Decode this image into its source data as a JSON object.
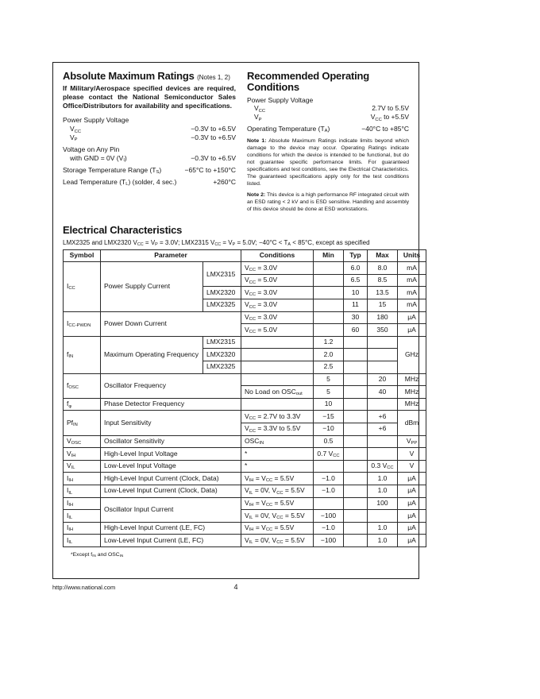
{
  "ink_color": "#141414",
  "border_color": "#1c1c1c",
  "abs_max": {
    "title": "Absolute Maximum Ratings",
    "title_note": "(Notes 1, 2)",
    "warning": "If Military/Aerospace specified devices are required, please contact the National Semiconductor Sales Office/Distributors for availability and specifications.",
    "lines": [
      {
        "label": "Power Supply Voltage",
        "value": ""
      },
      {
        "label": "V~CC~",
        "value": "−0.3V to +6.5V"
      },
      {
        "label": "V~P~",
        "value": "−0.3V to +6.5V"
      },
      {
        "label": "Voltage on Any Pin",
        "value": ""
      },
      {
        "label": "with GND = 0V (V~I~)",
        "value": "−0.3V to +6.5V"
      },
      {
        "label": "Storage Temperature Range (T~S~)",
        "value": "−65°C to +150°C"
      },
      {
        "label": "Lead Temperature (T~L~) (solder, 4 sec.)",
        "value": "+260°C"
      }
    ]
  },
  "rec_op": {
    "title": "Recommended Operating Conditions",
    "lines": [
      {
        "label": "Power Supply Voltage",
        "value": ""
      },
      {
        "label": "V~CC~",
        "value": "2.7V to 5.5V"
      },
      {
        "label": "V~P~",
        "value": "V~CC~ to +5.5V"
      },
      {
        "label": "Operating Temperature (T~A~)",
        "value": "−40°C to +85°C"
      }
    ],
    "notes": [
      {
        "label": "Note 1:",
        "text": "Absolute Maximum Ratings indicate limits beyond which damage to the device may occur. Operating Ratings indicate conditions for which the device is intended to be functional, but do not guarantee specific performance limits. For guaranteed specifications and test conditions, see the Electrical Characteristics. The guaranteed specifications apply only for the test conditions listed."
      },
      {
        "label": "Note 2:",
        "text": "This device is a high performance RF integrated circuit with an ESD rating < 2 kV and is ESD sensitive. Handling and assembly of this device should be done at ESD workstations."
      }
    ]
  },
  "elec": {
    "title": "Electrical Characteristics",
    "subtitle": "LMX2325 and LMX2320 V~CC~ = V~P~ = 3.0V; LMX2315 V~CC~ = V~P~ = 5.0V; −40°C < T~A~ < 85°C, except as specified",
    "headers": [
      "Symbol",
      "Parameter",
      "Conditions",
      "Min",
      "Typ",
      "Max",
      "Units"
    ],
    "rows": [
      [
        "I~CC~",
        "Power Supply Current",
        "LMX2315",
        "V~CC~ = 3.0V",
        "",
        "6.0",
        "8.0",
        "mA"
      ],
      [
        "V~CC~ = 5.0V",
        "",
        "6.5",
        "8.5",
        "mA"
      ],
      [
        "LMX2320",
        "V~CC~ = 3.0V",
        "",
        "10",
        "13.5",
        "mA"
      ],
      [
        "LMX2325",
        "V~CC~ = 3.0V",
        "",
        "11",
        "15",
        "mA"
      ],
      [
        "I~CC-PWDN~",
        "Power Down Current",
        "V~CC~ = 3.0V",
        "",
        "30",
        "180",
        "μA"
      ],
      [
        "V~CC~ = 5.0V",
        "",
        "60",
        "350",
        "μA"
      ],
      [
        "f~IN~",
        "Maximum Operating Frequency",
        "LMX2315",
        "",
        "1.2",
        "",
        "",
        "GHz"
      ],
      [
        "LMX2320",
        "",
        "2.0",
        "",
        ""
      ],
      [
        "LMX2325",
        "",
        "2.5",
        "",
        ""
      ],
      [
        "f~OSC~",
        "Oscillator Frequency",
        "",
        "5",
        "",
        "20",
        "MHz"
      ],
      [
        "No Load on OSC~out~",
        "5",
        "",
        "40",
        "MHz"
      ],
      [
        "f~φ~",
        "Phase Detector Frequency",
        "",
        "10",
        "",
        "",
        "MHz"
      ],
      [
        "Pf~IN~",
        "Input Sensitivity",
        "V~CC~ = 2.7V to 3.3V",
        "−15",
        "",
        "+6",
        "dBm"
      ],
      [
        "V~CC~ = 3.3V to 5.5V",
        "−10",
        "",
        "+6"
      ],
      [
        "V~OSC~",
        "Oscillator Sensitivity",
        "OSC~IN~",
        "0.5",
        "",
        "",
        "V~PP~"
      ],
      [
        "V~IH~",
        "High-Level Input Voltage",
        "*",
        "0.7 V~CC~",
        "",
        "",
        "V"
      ],
      [
        "V~IL~",
        "Low-Level Input Voltage",
        "*",
        "",
        "",
        "0.3 V~CC~",
        "V"
      ],
      [
        "I~IH~",
        "High-Level Input Current (Clock, Data)",
        "V~IH~ = V~CC~ = 5.5V",
        "−1.0",
        "",
        "1.0",
        "μA"
      ],
      [
        "I~IL~",
        "Low-Level Input Current (Clock, Data)",
        "V~IL~ = 0V, V~CC~ = 5.5V",
        "−1.0",
        "",
        "1.0",
        "μA"
      ],
      [
        "I~IH~",
        "Oscillator Input Current",
        "V~IH~ = V~CC~ = 5.5V",
        "",
        "",
        "100",
        "μA"
      ],
      [
        "I~IL~",
        "V~IL~ = 0V, V~CC~ = 5.5V",
        "−100",
        "",
        "",
        "μA"
      ],
      [
        "I~IH~",
        "High-Level Input Current (LE, FC)",
        "V~IH~ = V~CC~ = 5.5V",
        "−1.0",
        "",
        "1.0",
        "μA"
      ],
      [
        "I~IL~",
        "Low-Level Input Current (LE, FC)",
        "V~IL~ = 0V, V~CC~ = 5.5V",
        "−100",
        "",
        "1.0",
        "μA"
      ]
    ],
    "footnote": "*Except f~IN~ and OSC~IN~"
  },
  "footer": {
    "url": "http://www.national.com",
    "page": "4"
  }
}
